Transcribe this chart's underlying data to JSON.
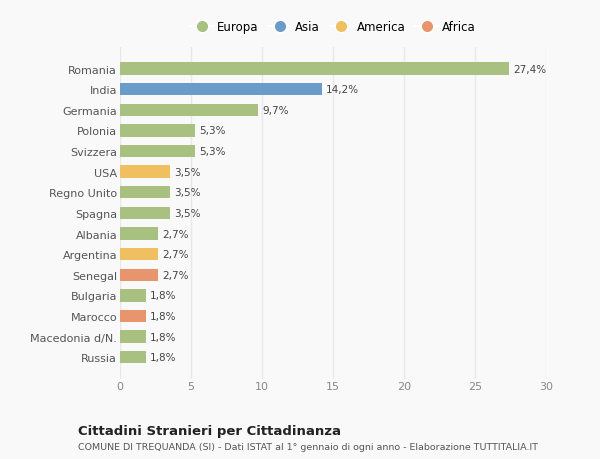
{
  "countries": [
    "Romania",
    "India",
    "Germania",
    "Polonia",
    "Svizzera",
    "USA",
    "Regno Unito",
    "Spagna",
    "Albania",
    "Argentina",
    "Senegal",
    "Bulgaria",
    "Marocco",
    "Macedonia d/N.",
    "Russia"
  ],
  "values": [
    27.4,
    14.2,
    9.7,
    5.3,
    5.3,
    3.5,
    3.5,
    3.5,
    2.7,
    2.7,
    2.7,
    1.8,
    1.8,
    1.8,
    1.8
  ],
  "labels": [
    "27,4%",
    "14,2%",
    "9,7%",
    "5,3%",
    "5,3%",
    "3,5%",
    "3,5%",
    "3,5%",
    "2,7%",
    "2,7%",
    "2,7%",
    "1,8%",
    "1,8%",
    "1,8%",
    "1,8%"
  ],
  "continents": [
    "Europa",
    "Asia",
    "Europa",
    "Europa",
    "Europa",
    "America",
    "Europa",
    "Europa",
    "Europa",
    "America",
    "Africa",
    "Europa",
    "Africa",
    "Europa",
    "Europa"
  ],
  "colors": {
    "Europa": "#a8c080",
    "Asia": "#6b9bc8",
    "America": "#f0c060",
    "Africa": "#e8956e"
  },
  "legend_order": [
    "Europa",
    "Asia",
    "America",
    "Africa"
  ],
  "title": "Cittadini Stranieri per Cittadinanza",
  "subtitle": "COMUNE DI TREQUANDA (SI) - Dati ISTAT al 1° gennaio di ogni anno - Elaborazione TUTTITALIA.IT",
  "xlim": [
    0,
    30
  ],
  "xticks": [
    0,
    5,
    10,
    15,
    20,
    25,
    30
  ],
  "background_color": "#f9f9f9",
  "grid_color": "#e8e8e8",
  "bar_height": 0.6
}
